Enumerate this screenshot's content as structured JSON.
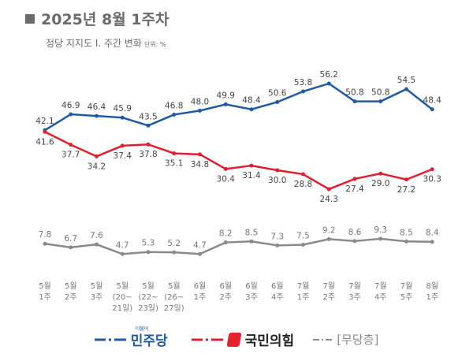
{
  "header": {
    "title": "2025년 8월 1주차",
    "subtitle": "정당 지지도 Ⅰ. 주간 변화",
    "unit": "단위: %"
  },
  "colors": {
    "minjoo": "#1f5aa6",
    "ppp": "#e0202e",
    "independent": "#8a8a8a"
  },
  "chart_data": {
    "type": "line",
    "categories": [
      [
        "5월",
        "1주"
      ],
      [
        "5월",
        "2주"
      ],
      [
        "5월",
        "3주"
      ],
      [
        "5월",
        "(20~",
        "21일)"
      ],
      [
        "5월",
        "(22~",
        "23일)"
      ],
      [
        "5월",
        "(26~",
        "27일)"
      ],
      [
        "6월",
        "1주"
      ],
      [
        "6월",
        "2주"
      ],
      [
        "6월",
        "3주"
      ],
      [
        "6월",
        "4주"
      ],
      [
        "7월",
        "1주"
      ],
      [
        "7월",
        "2주"
      ],
      [
        "7월",
        "3주"
      ],
      [
        "7월",
        "4주"
      ],
      [
        "7월",
        "5주"
      ],
      [
        "8월",
        "1주"
      ]
    ],
    "series": [
      {
        "name": "민주당",
        "values": [
          42.1,
          46.9,
          46.4,
          45.9,
          43.5,
          46.8,
          48.0,
          49.9,
          48.4,
          50.6,
          53.8,
          56.2,
          50.8,
          50.8,
          54.5,
          48.4
        ]
      },
      {
        "name": "국민의힘",
        "values": [
          41.6,
          37.7,
          34.2,
          37.4,
          37.8,
          35.1,
          34.8,
          30.4,
          31.4,
          30.0,
          28.8,
          24.3,
          27.4,
          29.0,
          27.2,
          30.3
        ]
      },
      {
        "name": "[무당층]",
        "values": [
          7.8,
          6.7,
          7.6,
          4.7,
          5.3,
          5.2,
          4.7,
          8.2,
          8.5,
          7.3,
          7.5,
          9.2,
          8.6,
          9.3,
          8.5,
          8.4
        ]
      }
    ],
    "ylim": [
      0,
      60
    ],
    "grid": false,
    "legend": "bottom"
  },
  "legend": {
    "minjoo_small": "더불어",
    "minjoo": "민주당",
    "ppp": "국민의힘",
    "independent": "[무당층]"
  }
}
